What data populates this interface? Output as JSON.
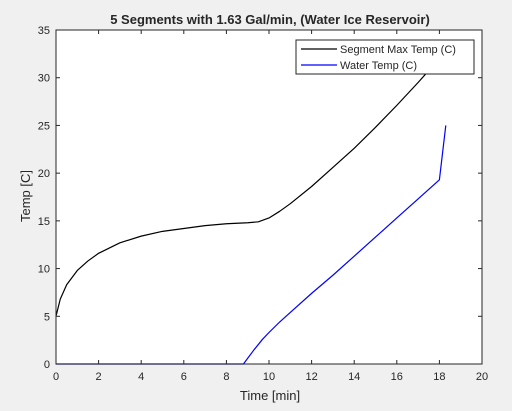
{
  "chart_data": {
    "type": "line",
    "title": "5 Segments with 1.63 Gal/min, (Water Ice Reservoir)",
    "xlabel": "Time [min]",
    "ylabel": "Temp [C]",
    "xlim": [
      0,
      20
    ],
    "ylim": [
      0,
      35
    ],
    "xticks": [
      "0",
      "2",
      "4",
      "6",
      "8",
      "10",
      "12",
      "14",
      "16",
      "18",
      "20"
    ],
    "yticks": [
      "0",
      "5",
      "10",
      "15",
      "20",
      "25",
      "30",
      "35"
    ],
    "grid": false,
    "legend_position": "top-right",
    "series": [
      {
        "name": "Segment Max Temp (C)",
        "color": "#000000",
        "x": [
          0,
          0.2,
          0.5,
          1,
          1.5,
          2,
          3,
          4,
          5,
          6,
          7,
          8,
          9,
          9.5,
          10,
          10.5,
          11,
          12,
          13,
          14,
          15,
          16,
          17,
          17.6
        ],
        "y": [
          5.0,
          6.8,
          8.3,
          9.8,
          10.8,
          11.6,
          12.7,
          13.4,
          13.9,
          14.2,
          14.5,
          14.7,
          14.8,
          14.9,
          15.3,
          16.0,
          16.8,
          18.6,
          20.6,
          22.6,
          24.8,
          27.1,
          29.5,
          31.0
        ]
      },
      {
        "name": "Water Temp (C)",
        "color": "#0000ff",
        "x": [
          0,
          8.8,
          9.0,
          9.3,
          9.7,
          10.0,
          10.5,
          11,
          12,
          13,
          14,
          15,
          16,
          17,
          18,
          18.3
        ],
        "y": [
          0,
          0,
          0.6,
          1.5,
          2.6,
          3.3,
          4.4,
          5.4,
          7.4,
          9.3,
          11.3,
          13.3,
          15.3,
          17.3,
          19.3,
          25.0
        ]
      }
    ]
  }
}
